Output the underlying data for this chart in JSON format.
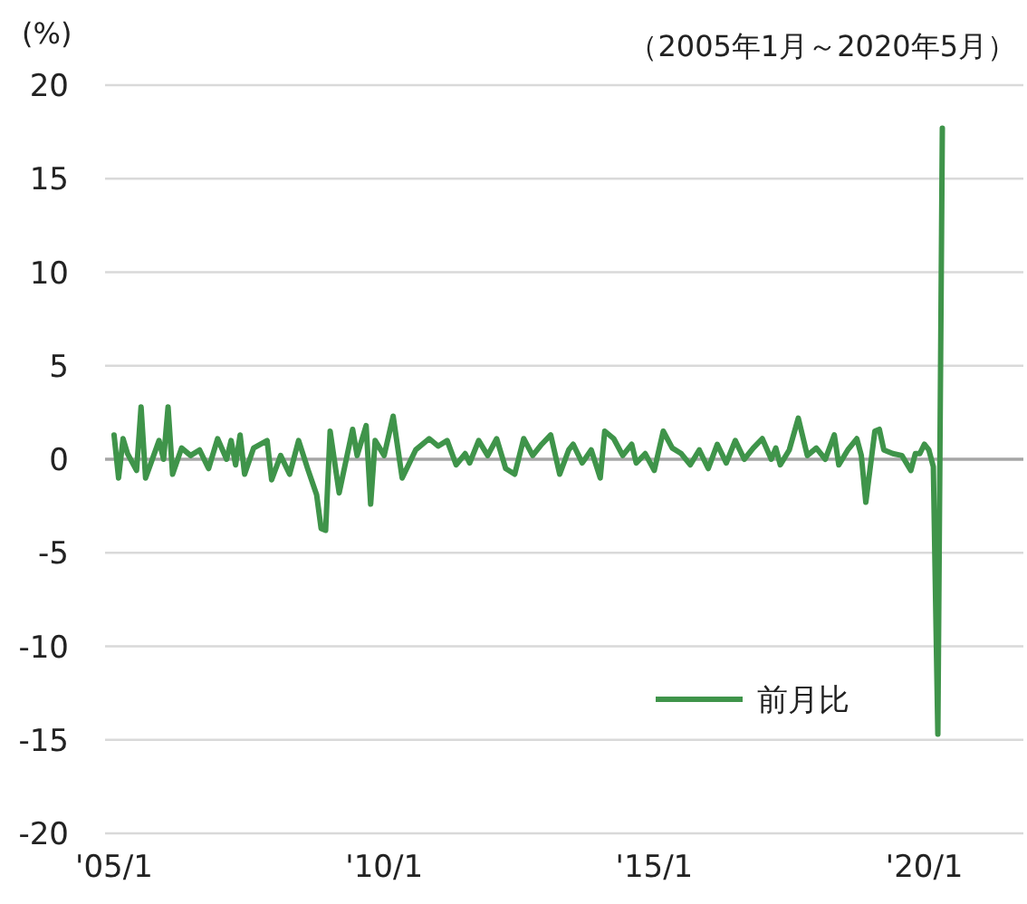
{
  "chart_data": {
    "type": "line",
    "subtitle": "（2005年1月～2020年5月）",
    "ylabel": "(%)",
    "x": [
      "2005-01",
      "2005-02",
      "2005-03",
      "2005-04",
      "2005-06",
      "2005-07",
      "2005-08",
      "2005-11",
      "2005-12",
      "2006-01",
      "2006-02",
      "2006-04",
      "2006-06",
      "2006-08",
      "2006-10",
      "2006-12",
      "2007-02",
      "2007-03",
      "2007-04",
      "2007-05",
      "2007-06",
      "2007-08",
      "2007-11",
      "2007-12",
      "2008-02",
      "2008-04",
      "2008-06",
      "2008-08",
      "2008-10",
      "2008-11",
      "2008-12",
      "2009-01",
      "2009-03",
      "2009-06",
      "2009-07",
      "2009-09",
      "2009-10",
      "2009-11",
      "2010-01",
      "2010-03",
      "2010-05",
      "2010-08",
      "2010-11",
      "2011-01",
      "2011-03",
      "2011-05",
      "2011-07",
      "2011-08",
      "2011-10",
      "2011-12",
      "2012-02",
      "2012-04",
      "2012-06",
      "2012-08",
      "2012-10",
      "2012-12",
      "2013-02",
      "2013-04",
      "2013-06",
      "2013-07",
      "2013-09",
      "2013-11",
      "2014-01",
      "2014-02",
      "2014-04",
      "2014-06",
      "2014-08",
      "2014-09",
      "2014-11",
      "2015-01",
      "2015-03",
      "2015-05",
      "2015-07",
      "2015-09",
      "2015-11",
      "2016-01",
      "2016-03",
      "2016-05",
      "2016-07",
      "2016-09",
      "2016-11",
      "2017-01",
      "2017-03",
      "2017-04",
      "2017-05",
      "2017-07",
      "2017-09",
      "2017-11",
      "2018-01",
      "2018-03",
      "2018-05",
      "2018-06",
      "2018-08",
      "2018-10",
      "2018-11",
      "2018-12",
      "2019-02",
      "2019-03",
      "2019-04",
      "2019-06",
      "2019-08",
      "2019-10",
      "2019-11",
      "2019-12",
      "2020-01",
      "2020-02",
      "2020-03",
      "2020-04",
      "2020-05"
    ],
    "series": [
      {
        "name": "前月比",
        "color": "#3f944a",
        "values": [
          1.3,
          -1.0,
          1.1,
          0.3,
          -0.6,
          2.8,
          -1.0,
          1.0,
          0,
          2.8,
          -0.8,
          0.6,
          0.2,
          0.5,
          -0.5,
          1.1,
          0,
          1.0,
          -0.3,
          1.3,
          -0.8,
          0.6,
          1.0,
          -1.1,
          0.2,
          -0.8,
          1.0,
          -0.5,
          -1.9,
          -3.7,
          -3.8,
          1.5,
          -1.8,
          1.6,
          0.2,
          1.8,
          -2.4,
          1.0,
          0.2,
          2.3,
          -1.0,
          0.5,
          1.1,
          0.7,
          1.0,
          -0.3,
          0.3,
          -0.2,
          1.0,
          0.2,
          1.1,
          -0.5,
          -0.8,
          1.1,
          0.2,
          0.8,
          1.3,
          -0.8,
          0.5,
          0.8,
          -0.2,
          0.5,
          -1.0,
          1.5,
          1.1,
          0.2,
          0.8,
          -0.2,
          0.3,
          -0.6,
          1.5,
          0.6,
          0.3,
          -0.3,
          0.5,
          -0.5,
          0.8,
          -0.2,
          1.0,
          0,
          0.6,
          1.1,
          0,
          0.6,
          -0.3,
          0.5,
          2.2,
          0.2,
          0.6,
          0,
          1.3,
          -0.3,
          0.5,
          1.1,
          0.2,
          -2.3,
          1.5,
          1.6,
          0.5,
          0.3,
          0.2,
          -0.6,
          0.3,
          0.3,
          0.8,
          0.5,
          -0.4,
          -14.7,
          17.7
        ]
      }
    ],
    "xlim": [
      "2004-11",
      "2021-11"
    ],
    "xticks": [
      {
        "value": "2005-01",
        "label": "'05/1"
      },
      {
        "value": "2010-01",
        "label": "'10/1"
      },
      {
        "value": "2015-01",
        "label": "'15/1"
      },
      {
        "value": "2020-01",
        "label": "'20/1"
      }
    ],
    "ylim": [
      -20,
      20
    ],
    "yticks": [
      -20,
      -15,
      -10,
      -5,
      0,
      5,
      10,
      15,
      20
    ],
    "grid": "y",
    "legend": "bottom right",
    "marker": "none",
    "line_style": "solid"
  }
}
